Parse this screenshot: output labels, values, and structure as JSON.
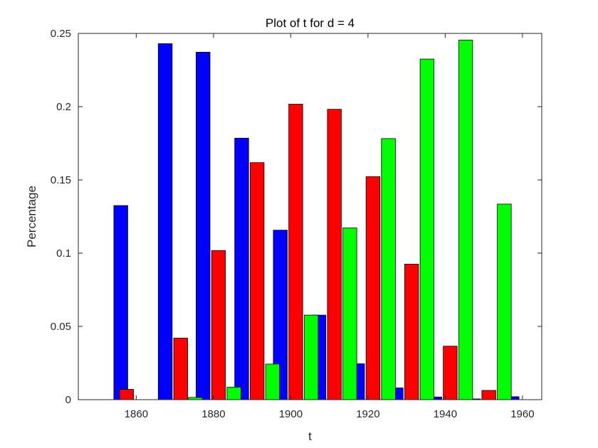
{
  "chart_data": {
    "type": "bar",
    "title": "Plot of t for d = 4",
    "xlabel": "t",
    "ylabel": "Percentage",
    "xlim": [
      1845,
      1965
    ],
    "ylim": [
      0,
      0.25
    ],
    "xticks": [
      1860,
      1880,
      1900,
      1920,
      1940,
      1960
    ],
    "yticks": [
      0,
      0.05,
      0.1,
      0.15,
      0.2,
      0.25
    ],
    "xtick_labels": [
      "1860",
      "1880",
      "1900",
      "1920",
      "1940",
      "1960"
    ],
    "ytick_labels": [
      "0",
      "0.05",
      "0.1",
      "0.15",
      "0.2",
      "0.25"
    ],
    "bar_width": 3.6,
    "grid": false,
    "bar_edge_color": "#000000",
    "series": [
      {
        "color": "#0000ff",
        "x": [
          1856,
          1867.5,
          1877.3,
          1887.3,
          1897.3,
          1907.3,
          1917.3,
          1927.3,
          1937.3,
          1947.3,
          1957.3
        ],
        "values": [
          0.1325,
          0.243,
          0.2372,
          0.1785,
          0.1157,
          0.0577,
          0.0245,
          0.008,
          0.0018,
          0.0005,
          0.002
        ]
      },
      {
        "color": "#ff0000",
        "x": [
          1857.5,
          1871.5,
          1881.3,
          1891.3,
          1901.3,
          1911.3,
          1921.3,
          1931.3,
          1941.3,
          1951.3
        ],
        "values": [
          0.007,
          0.042,
          0.1018,
          0.1618,
          0.2017,
          0.1982,
          0.1522,
          0.0925,
          0.0365,
          0.0063
        ]
      },
      {
        "color": "#00ff00",
        "x": [
          1875.3,
          1885.3,
          1895.3,
          1905.3,
          1915.3,
          1925.3,
          1935.3,
          1945.3,
          1955.3
        ],
        "values": [
          0.0015,
          0.0085,
          0.0243,
          0.0577,
          0.1172,
          0.1782,
          0.2325,
          0.2455,
          0.1335
        ]
      }
    ]
  }
}
